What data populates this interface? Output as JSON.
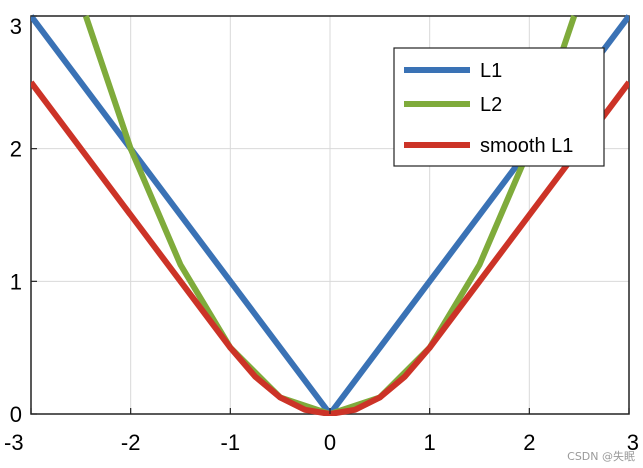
{
  "chart_data": {
    "type": "line",
    "title": "",
    "xlabel": "",
    "ylabel": "",
    "xlim": [
      -3,
      3
    ],
    "ylim": [
      0,
      3
    ],
    "grid": true,
    "legend_position": "top-right",
    "x_ticks": [
      "-3",
      "-2",
      "-1",
      "0",
      "1",
      "2",
      "3"
    ],
    "y_ticks": [
      "0",
      "1",
      "2",
      "3"
    ],
    "series": [
      {
        "name": "L1",
        "color": "#3a72b5",
        "x": [
          -3,
          -2,
          -1,
          0,
          1,
          2,
          3
        ],
        "y": [
          3,
          2,
          1,
          0,
          1,
          2,
          3
        ]
      },
      {
        "name": "L2",
        "color": "#7fab3b",
        "x": [
          -2.45,
          -2,
          -1.5,
          -1,
          -0.5,
          0,
          0.5,
          1,
          1.5,
          2,
          2.45
        ],
        "y": [
          3,
          2,
          1.125,
          0.5,
          0.125,
          0,
          0.125,
          0.5,
          1.125,
          2,
          3
        ]
      },
      {
        "name": "smooth L1",
        "color": "#cc3327",
        "x": [
          -3,
          -2,
          -1,
          -0.75,
          -0.5,
          -0.25,
          0,
          0.25,
          0.5,
          0.75,
          1,
          2,
          3
        ],
        "y": [
          2.5,
          1.5,
          0.5,
          0.28125,
          0.125,
          0.03125,
          0,
          0.03125,
          0.125,
          0.28125,
          0.5,
          1.5,
          2.5
        ]
      }
    ]
  },
  "watermark": "CSDN @失眠"
}
